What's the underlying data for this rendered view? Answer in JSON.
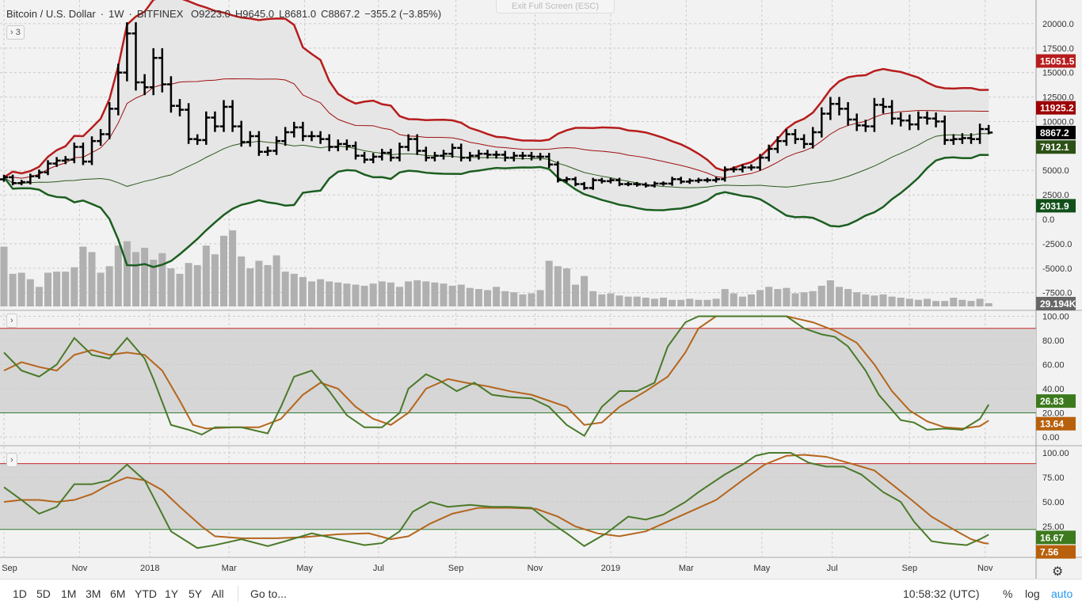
{
  "header": {
    "symbol": "Bitcoin / U.S. Dollar",
    "interval": "1W",
    "exchange": "BITFINEX",
    "open": "O9223.0",
    "high": "H9645.0",
    "low": "L8681.0",
    "close": "C8867.2",
    "change": "−355.2 (−3.85%)"
  },
  "exit_fullscreen": "Exit Full Screen (ESC)",
  "pane_buttons": [
    "› 3",
    "›",
    "›"
  ],
  "colors": {
    "up": "#000000",
    "upper_outer": "#b71c1c",
    "upper_inner": "#a01010",
    "lower_inner": "#2e5a1c",
    "lower_outer": "#1b5e20",
    "k": "#4a7a2a",
    "d": "#b5651d",
    "volume": "#b0b0b0"
  },
  "chart_data": [
    {
      "type": "ohlc",
      "title": "Bitcoin / U.S. Dollar 1W",
      "ylim": [
        -8500,
        21000
      ],
      "yticks": [
        20000,
        17500,
        15000,
        12500,
        10000,
        5000,
        2500,
        0,
        -2500,
        -5000,
        -7500
      ],
      "closes": [
        4300,
        3700,
        3800,
        4400,
        4800,
        5700,
        6000,
        6100,
        7400,
        5900,
        8000,
        8700,
        11300,
        15000,
        19000,
        14000,
        13500,
        16500,
        13800,
        11600,
        11200,
        8200,
        8100,
        10400,
        9500,
        11500,
        9500,
        7900,
        8500,
        6900,
        7000,
        8000,
        8900,
        9400,
        8500,
        8500,
        8200,
        7400,
        7700,
        7500,
        6500,
        6100,
        6400,
        6800,
        6300,
        7400,
        8200,
        7000,
        6300,
        6500,
        6700,
        7300,
        6300,
        6500,
        6700,
        6600,
        6600,
        6300,
        6500,
        6500,
        6400,
        6400,
        5600,
        4000,
        4100,
        3600,
        3200,
        4000,
        3900,
        4000,
        3600,
        3600,
        3550,
        3450,
        3650,
        3650,
        4100,
        3850,
        3950,
        4000,
        4000,
        4100,
        5100,
        5100,
        5300,
        5300,
        6300,
        7200,
        8000,
        8700,
        8200,
        7700,
        8900,
        10800,
        11800,
        11300,
        10200,
        9600,
        9500,
        11700,
        11500,
        10300,
        10100,
        9700,
        10400,
        10300,
        10000,
        8100,
        8200,
        8300,
        8200,
        9223,
        8867.2
      ],
      "last_bar": {
        "open": 9223.0,
        "high": 9645.0,
        "low": 8681.0,
        "close": 8867.2
      },
      "volume_k": [
        550,
        300,
        310,
        250,
        180,
        310,
        320,
        320,
        360,
        550,
        500,
        310,
        370,
        560,
        600,
        500,
        540,
        430,
        490,
        350,
        300,
        400,
        380,
        560,
        480,
        650,
        700,
        460,
        350,
        420,
        380,
        470,
        320,
        300,
        270,
        230,
        250,
        230,
        220,
        210,
        200,
        190,
        210,
        230,
        220,
        180,
        230,
        240,
        230,
        220,
        210,
        190,
        200,
        170,
        160,
        150,
        180,
        140,
        130,
        110,
        120,
        150,
        420,
        370,
        350,
        200,
        280,
        140,
        110,
        120,
        100,
        90,
        90,
        80,
        70,
        80,
        60,
        60,
        70,
        60,
        60,
        70,
        160,
        120,
        90,
        110,
        150,
        180,
        160,
        170,
        120,
        130,
        140,
        190,
        240,
        180,
        160,
        130,
        110,
        100,
        110,
        90,
        80,
        70,
        60,
        70,
        50,
        50,
        80,
        60,
        50,
        70,
        29.194
      ],
      "last_labels": {
        "upper_outer": "15051.5",
        "upper_inner": "11925.2",
        "close": "8867.2",
        "lower_inner": "7912.1",
        "lower_outer": "2031.9",
        "volume": "29.194K"
      }
    },
    {
      "type": "line",
      "ylim": [
        0,
        100
      ],
      "yticks": [
        "100.00",
        "80.00",
        "60.00",
        "40.00",
        "20.00",
        "0.00"
      ],
      "levels": [
        90,
        20
      ],
      "k": [
        [
          0,
          70
        ],
        [
          2,
          55
        ],
        [
          4,
          50
        ],
        [
          6,
          60
        ],
        [
          8,
          82
        ],
        [
          10,
          68
        ],
        [
          12,
          65
        ],
        [
          14,
          82
        ],
        [
          16,
          65
        ],
        [
          17,
          48
        ],
        [
          19,
          10
        ],
        [
          21,
          6
        ],
        [
          22.5,
          2
        ],
        [
          24,
          8
        ],
        [
          27,
          8
        ],
        [
          30,
          3
        ],
        [
          31.5,
          25
        ],
        [
          33,
          50
        ],
        [
          35,
          55
        ],
        [
          37,
          38
        ],
        [
          39,
          18
        ],
        [
          41,
          8
        ],
        [
          43,
          8
        ],
        [
          45,
          20
        ],
        [
          46,
          40
        ],
        [
          48,
          52
        ],
        [
          49.5,
          47
        ],
        [
          51.5,
          38
        ],
        [
          53.5,
          45
        ],
        [
          55.5,
          35
        ],
        [
          57.5,
          33
        ],
        [
          60,
          32
        ],
        [
          62,
          25
        ],
        [
          64,
          10
        ],
        [
          66,
          1
        ],
        [
          68,
          25
        ],
        [
          70,
          38
        ],
        [
          72,
          38
        ],
        [
          74,
          45
        ],
        [
          75.5,
          75
        ],
        [
          77.5,
          95
        ],
        [
          79,
          100
        ],
        [
          81,
          100
        ],
        [
          84,
          100
        ],
        [
          86.5,
          100
        ],
        [
          89,
          100
        ],
        [
          91,
          90
        ],
        [
          93,
          85
        ],
        [
          94.5,
          83
        ],
        [
          96,
          75
        ],
        [
          98,
          55
        ],
        [
          99.5,
          35
        ],
        [
          102,
          14
        ],
        [
          103.5,
          12
        ],
        [
          105,
          6
        ],
        [
          107,
          7
        ],
        [
          109,
          6
        ],
        [
          111,
          15
        ],
        [
          112,
          26.83
        ]
      ],
      "d": [
        [
          0,
          55
        ],
        [
          2,
          62
        ],
        [
          4,
          58
        ],
        [
          6,
          55
        ],
        [
          8,
          68
        ],
        [
          10,
          72
        ],
        [
          12,
          68
        ],
        [
          14,
          70
        ],
        [
          16,
          68
        ],
        [
          18,
          55
        ],
        [
          20,
          30
        ],
        [
          21.5,
          10
        ],
        [
          23,
          7
        ],
        [
          26,
          8
        ],
        [
          29,
          8
        ],
        [
          31.5,
          15
        ],
        [
          34,
          35
        ],
        [
          36,
          45
        ],
        [
          38,
          40
        ],
        [
          40,
          25
        ],
        [
          42,
          15
        ],
        [
          44,
          10
        ],
        [
          46,
          20
        ],
        [
          48,
          40
        ],
        [
          50.5,
          48
        ],
        [
          52.5,
          45
        ],
        [
          55,
          42
        ],
        [
          57.5,
          38
        ],
        [
          60,
          35
        ],
        [
          62,
          30
        ],
        [
          64,
          25
        ],
        [
          66,
          10
        ],
        [
          68,
          12
        ],
        [
          70,
          25
        ],
        [
          73,
          38
        ],
        [
          75.5,
          50
        ],
        [
          77.5,
          70
        ],
        [
          79,
          90
        ],
        [
          81,
          100
        ],
        [
          84,
          100
        ],
        [
          86.5,
          100
        ],
        [
          89,
          100
        ],
        [
          92,
          95
        ],
        [
          94.5,
          88
        ],
        [
          97,
          78
        ],
        [
          99,
          60
        ],
        [
          101,
          38
        ],
        [
          103,
          22
        ],
        [
          105,
          13
        ],
        [
          107,
          8
        ],
        [
          109,
          7
        ],
        [
          111,
          9
        ],
        [
          112,
          13.64
        ]
      ],
      "last_labels": {
        "k": "26.83",
        "d": "13.64"
      }
    },
    {
      "type": "line",
      "ylim": [
        0,
        100
      ],
      "yticks": [
        "100.00",
        "75.00",
        "50.00",
        "25.00"
      ],
      "levels": [
        89,
        22
      ],
      "k": [
        [
          0,
          65
        ],
        [
          2,
          52
        ],
        [
          4,
          38
        ],
        [
          6,
          45
        ],
        [
          8,
          68
        ],
        [
          10,
          68
        ],
        [
          12,
          72
        ],
        [
          14,
          88
        ],
        [
          16,
          72
        ],
        [
          17,
          55
        ],
        [
          19,
          20
        ],
        [
          22,
          3
        ],
        [
          24,
          6
        ],
        [
          27,
          12
        ],
        [
          30,
          5
        ],
        [
          32,
          10
        ],
        [
          35,
          18
        ],
        [
          38,
          12
        ],
        [
          41,
          6
        ],
        [
          43,
          8
        ],
        [
          45,
          20
        ],
        [
          46.5,
          40
        ],
        [
          48.5,
          50
        ],
        [
          50.5,
          45
        ],
        [
          53,
          47
        ],
        [
          55.5,
          45
        ],
        [
          57.5,
          45
        ],
        [
          60,
          44
        ],
        [
          62,
          30
        ],
        [
          64,
          18
        ],
        [
          66,
          5
        ],
        [
          68.5,
          18
        ],
        [
          71,
          35
        ],
        [
          73,
          32
        ],
        [
          75,
          37
        ],
        [
          77.5,
          50
        ],
        [
          79,
          60
        ],
        [
          82,
          78
        ],
        [
          84,
          88
        ],
        [
          85.5,
          97
        ],
        [
          87,
          100
        ],
        [
          89.5,
          100
        ],
        [
          91.5,
          90
        ],
        [
          93.5,
          86
        ],
        [
          95.5,
          86
        ],
        [
          97.5,
          78
        ],
        [
          100,
          60
        ],
        [
          102,
          50
        ],
        [
          103.5,
          30
        ],
        [
          105.5,
          10
        ],
        [
          107,
          8
        ],
        [
          109.5,
          6
        ],
        [
          111,
          12
        ],
        [
          112,
          16.67
        ]
      ],
      "d": [
        [
          0,
          50
        ],
        [
          2,
          52
        ],
        [
          4,
          52
        ],
        [
          6,
          50
        ],
        [
          8,
          52
        ],
        [
          10,
          58
        ],
        [
          12,
          68
        ],
        [
          14,
          75
        ],
        [
          16,
          72
        ],
        [
          18,
          62
        ],
        [
          20,
          45
        ],
        [
          22.5,
          25
        ],
        [
          24,
          15
        ],
        [
          27,
          13
        ],
        [
          31,
          13
        ],
        [
          34,
          14
        ],
        [
          38,
          17
        ],
        [
          41.5,
          18
        ],
        [
          44,
          12
        ],
        [
          46,
          15
        ],
        [
          48.5,
          28
        ],
        [
          51,
          38
        ],
        [
          54,
          44
        ],
        [
          57.5,
          44
        ],
        [
          60.5,
          43
        ],
        [
          63,
          35
        ],
        [
          65,
          25
        ],
        [
          67.5,
          18
        ],
        [
          70,
          15
        ],
        [
          73,
          20
        ],
        [
          75.5,
          30
        ],
        [
          78,
          40
        ],
        [
          81,
          52
        ],
        [
          84,
          72
        ],
        [
          86.5,
          88
        ],
        [
          89,
          97
        ],
        [
          91,
          98
        ],
        [
          93.5,
          96
        ],
        [
          96,
          90
        ],
        [
          99,
          82
        ],
        [
          101,
          68
        ],
        [
          103.5,
          50
        ],
        [
          105.5,
          35
        ],
        [
          108,
          22
        ],
        [
          110,
          12
        ],
        [
          111.5,
          8
        ],
        [
          112,
          7.56
        ]
      ],
      "last_labels": {
        "k": "16.67",
        "d": "7.56"
      }
    }
  ],
  "time_axis": [
    [
      0,
      "Sep"
    ],
    [
      8.6,
      "Nov"
    ],
    [
      16.6,
      "2018"
    ],
    [
      25.6,
      "Mar"
    ],
    [
      34.2,
      "May"
    ],
    [
      42.6,
      "Jul"
    ],
    [
      51.4,
      "Sep"
    ],
    [
      60.4,
      "Nov"
    ],
    [
      69,
      "2019"
    ],
    [
      77.6,
      "Mar"
    ],
    [
      86.2,
      "May"
    ],
    [
      94.2,
      "Jul"
    ],
    [
      103,
      "Sep"
    ],
    [
      111.6,
      "Nov"
    ]
  ],
  "toolbar": {
    "ranges": [
      "1D",
      "5D",
      "1M",
      "3M",
      "6M",
      "YTD",
      "1Y",
      "5Y",
      "All"
    ],
    "goto": "Go to...",
    "time": "10:58:32 (UTC)",
    "percent": "%",
    "log": "log",
    "auto": "auto"
  }
}
